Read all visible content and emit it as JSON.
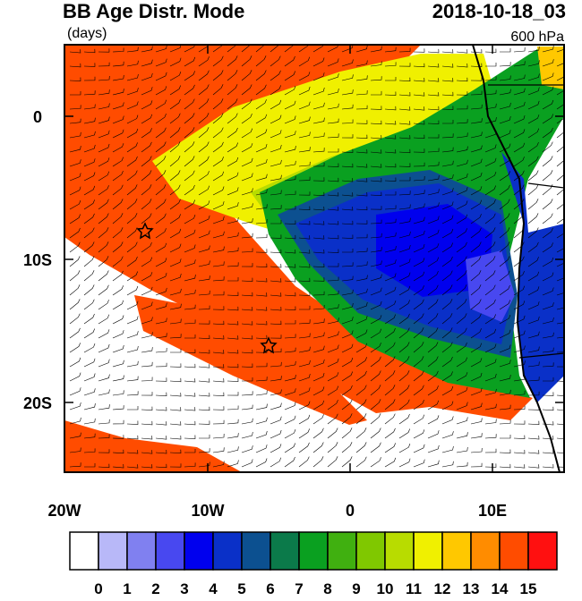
{
  "header": {
    "title": "BB Age Distr. Mode",
    "units": "(days)",
    "date": "2018-10-18_03",
    "level": "600 hPa"
  },
  "axes": {
    "x_labels": [
      "20W",
      "10W",
      "0",
      "10E"
    ],
    "y_labels": [
      "0",
      "10S",
      "20S"
    ]
  },
  "colorbar": {
    "labels": [
      "0",
      "1",
      "2",
      "3",
      "4",
      "5",
      "6",
      "7",
      "8",
      "9",
      "10",
      "11",
      "12",
      "13",
      "14",
      "15"
    ],
    "colors": [
      "#ffffff",
      "#b8b8f8",
      "#8080f0",
      "#4848f0",
      "#0000ee",
      "#0a30c8",
      "#0c5090",
      "#0b7a4a",
      "#0aa020",
      "#40b010",
      "#80c800",
      "#b8dc00",
      "#f0f000",
      "#ffc800",
      "#ff8c00",
      "#ff4c00",
      "#ff1010"
    ]
  }
}
